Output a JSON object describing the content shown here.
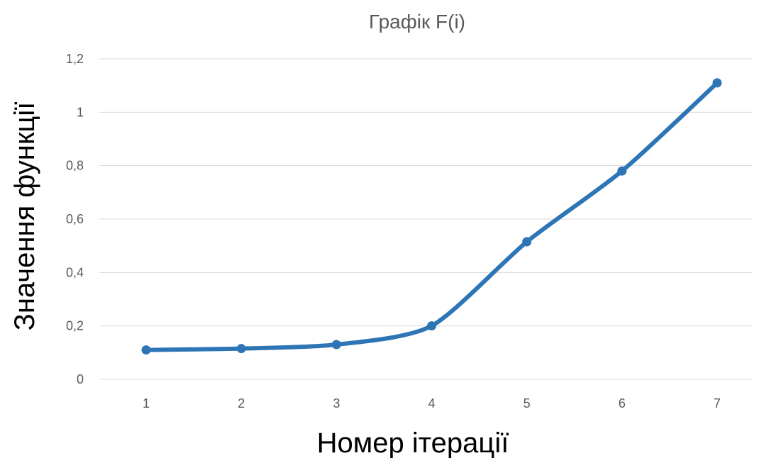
{
  "chart_data": {
    "type": "line",
    "title": "Графік F(i)",
    "xlabel": "Номер ітерації",
    "ylabel": "Значення функції",
    "x": [
      1,
      2,
      3,
      4,
      5,
      6,
      7
    ],
    "x_tick_labels": [
      "1",
      "2",
      "3",
      "4",
      "5",
      "6",
      "7"
    ],
    "y_tick_values": [
      0,
      0.2,
      0.4,
      0.6,
      0.8,
      1,
      1.2
    ],
    "y_tick_labels": [
      "0",
      "0,2",
      "0,4",
      "0,6",
      "0,8",
      "1",
      "1,2"
    ],
    "ylim": [
      0,
      1.2
    ],
    "grid": "horizontal",
    "legend": "none",
    "series": [
      {
        "values": [
          0.11,
          0.115,
          0.13,
          0.2,
          0.515,
          0.78,
          1.11
        ],
        "color": "#2e75b6",
        "marker": "circle"
      }
    ]
  }
}
